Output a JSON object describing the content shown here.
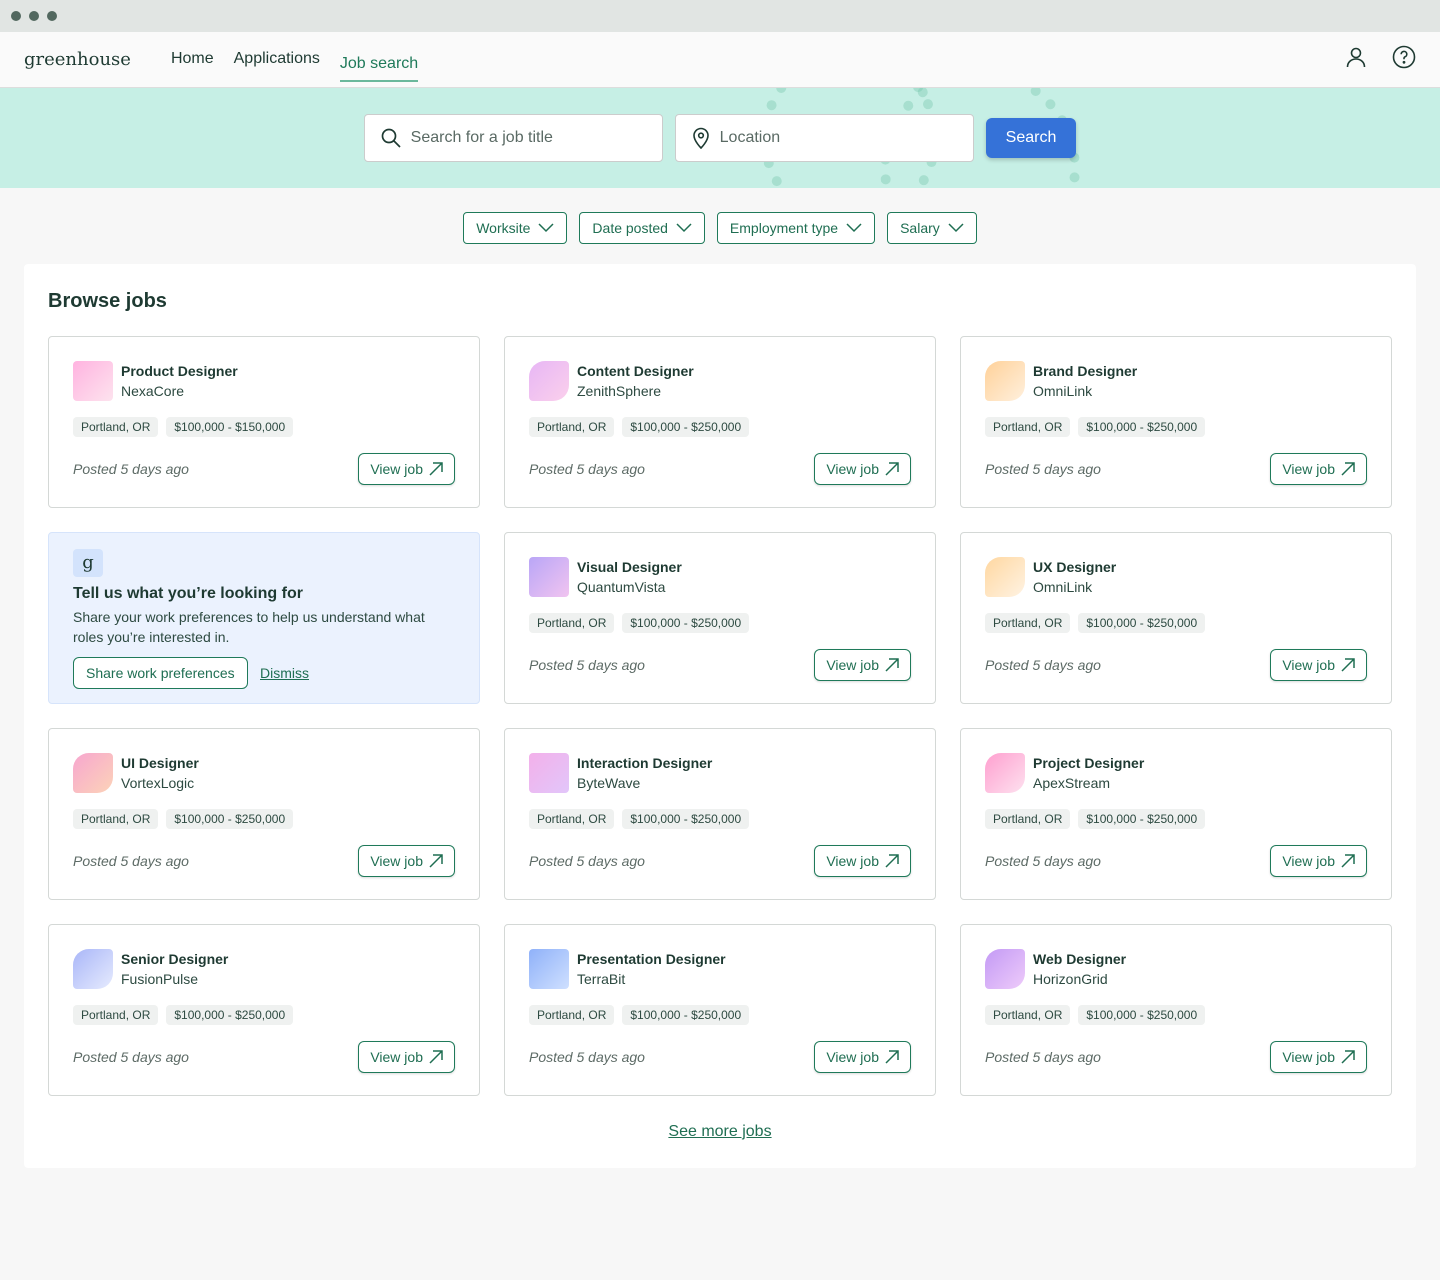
{
  "nav": {
    "logo": "greenhouse",
    "items": [
      {
        "label": "Home"
      },
      {
        "label": "Applications"
      },
      {
        "label": "Job search",
        "active": true
      }
    ],
    "icons": [
      "user-icon",
      "help-icon"
    ]
  },
  "search": {
    "title_placeholder": "Search for a job title",
    "location_placeholder": "Location",
    "button": "Search"
  },
  "filters": [
    {
      "label": "Worksite"
    },
    {
      "label": "Date posted"
    },
    {
      "label": "Employment type"
    },
    {
      "label": "Salary"
    }
  ],
  "browse": {
    "heading": "Browse jobs",
    "see_more": "See more jobs"
  },
  "promo": {
    "title": "Tell us what you’re looking for",
    "description": "Share your work preferences to help us understand what roles you’re interested in.",
    "share_button": "Share work preferences",
    "dismiss": "Dismiss"
  },
  "jobs": [
    {
      "title": "Product Designer",
      "company": "NexaCore",
      "location": "Portland, OR",
      "salary": "$100,000 - $150,000",
      "posted": "Posted 5 days ago",
      "view": "View job",
      "colors": [
        "#ffb3e0",
        "#fde3ee"
      ]
    },
    {
      "title": "Content Designer",
      "company": "ZenithSphere",
      "location": "Portland, OR",
      "salary": "$100,000 - $250,000",
      "posted": "Posted 5 days ago",
      "view": "View job",
      "colors": [
        "#e7b6f5",
        "#fbd0ec"
      ]
    },
    {
      "title": "Brand Designer",
      "company": "OmniLink",
      "location": "Portland, OR",
      "salary": "$100,000 - $250,000",
      "posted": "Posted 5 days ago",
      "view": "View job",
      "colors": [
        "#ffd199",
        "#fff0dd"
      ]
    },
    {
      "title": "Visual Designer",
      "company": "QuantumVista",
      "location": "Portland, OR",
      "salary": "$100,000 - $250,000",
      "posted": "Posted 5 days ago",
      "view": "View job",
      "colors": [
        "#b9a6f7",
        "#f1c4f0"
      ]
    },
    {
      "title": "UX Designer",
      "company": "OmniLink",
      "location": "Portland, OR",
      "salary": "$100,000 - $250,000",
      "posted": "Posted 5 days ago",
      "view": "View job",
      "colors": [
        "#ffd7a0",
        "#fff3e3"
      ]
    },
    {
      "title": "UI Designer",
      "company": "VortexLogic",
      "location": "Portland, OR",
      "salary": "$100,000 - $250,000",
      "posted": "Posted 5 days ago",
      "view": "View job",
      "colors": [
        "#f7a6cf",
        "#fcd3b8"
      ]
    },
    {
      "title": "Interaction Designer",
      "company": "ByteWave",
      "location": "Portland, OR",
      "salary": "$100,000 - $250,000",
      "posted": "Posted 5 days ago",
      "view": "View job",
      "colors": [
        "#f3b0ea",
        "#e2c6fa"
      ]
    },
    {
      "title": "Project Designer",
      "company": "ApexStream",
      "location": "Portland, OR",
      "salary": "$100,000 - $250,000",
      "posted": "Posted 5 days ago",
      "view": "View job",
      "colors": [
        "#ff9fcf",
        "#fde1ef"
      ]
    },
    {
      "title": "Senior Designer",
      "company": "FusionPulse",
      "location": "Portland, OR",
      "salary": "$100,000 - $250,000",
      "posted": "Posted 5 days ago",
      "view": "View job",
      "colors": [
        "#a9b6f8",
        "#e6ebfe"
      ]
    },
    {
      "title": "Presentation Designer",
      "company": "TerraBit",
      "location": "Portland, OR",
      "salary": "$100,000 - $250,000",
      "posted": "Posted 5 days ago",
      "view": "View job",
      "colors": [
        "#8fb1f9",
        "#cfe0ff"
      ]
    },
    {
      "title": "Web Designer",
      "company": "HorizonGrid",
      "location": "Portland, OR",
      "salary": "$100,000 - $250,000",
      "posted": "Posted 5 days ago",
      "view": "View job",
      "colors": [
        "#c39af5",
        "#eecbfa"
      ]
    }
  ]
}
